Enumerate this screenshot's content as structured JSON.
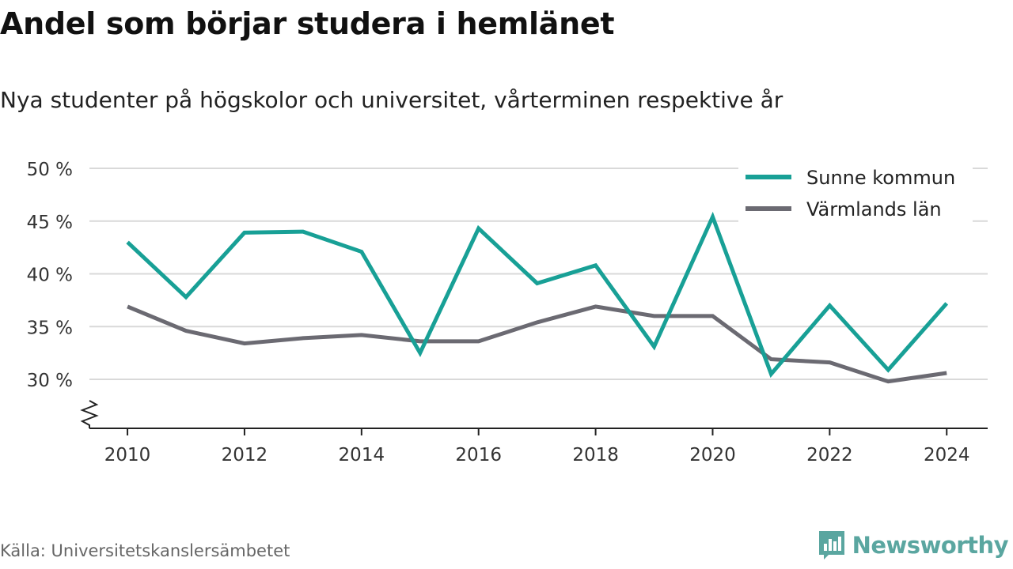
{
  "title": "Andel som börjar studera i hemlänet",
  "subtitle": "Nya studenter på högskolor och universitet, vårterminen respektive år",
  "source": "Källa: Universitetskanslersämbetet",
  "brand": {
    "name": "Newsworthy",
    "icon": "newsworthy-logo-icon",
    "color": "#5aa6a0"
  },
  "chart_data": {
    "type": "line",
    "title": "Andel som börjar studera i hemlänet",
    "subtitle": "Nya studenter på högskolor och universitet, vårterminen respektive år",
    "xlabel": "",
    "ylabel": "",
    "x": [
      2010,
      2011,
      2012,
      2013,
      2014,
      2015,
      2016,
      2017,
      2018,
      2019,
      2020,
      2021,
      2022,
      2023,
      2024
    ],
    "xticks": [
      2010,
      2012,
      2014,
      2016,
      2018,
      2020,
      2022,
      2024
    ],
    "xtick_labels": [
      "2010",
      "2012",
      "2014",
      "2016",
      "2018",
      "2020",
      "2022",
      "2024"
    ],
    "yticks": [
      30,
      35,
      40,
      45,
      50
    ],
    "ytick_labels": [
      "30 %",
      "35 %",
      "40 %",
      "45 %",
      "50 %"
    ],
    "ylim": [
      30,
      50
    ],
    "y_axis_break": true,
    "grid": true,
    "legend_position": "top-right",
    "series": [
      {
        "name": "Sunne kommun",
        "color": "#18a096",
        "values": [
          43.0,
          37.8,
          43.9,
          44.0,
          42.1,
          32.5,
          44.3,
          39.1,
          40.8,
          33.1,
          45.4,
          30.5,
          37.0,
          30.9,
          37.2
        ]
      },
      {
        "name": "Värmlands län",
        "color": "#6b6a72",
        "values": [
          36.9,
          34.6,
          33.4,
          33.9,
          34.2,
          33.6,
          33.6,
          35.4,
          36.9,
          36.0,
          36.0,
          31.9,
          31.6,
          29.8,
          30.6
        ]
      }
    ]
  }
}
